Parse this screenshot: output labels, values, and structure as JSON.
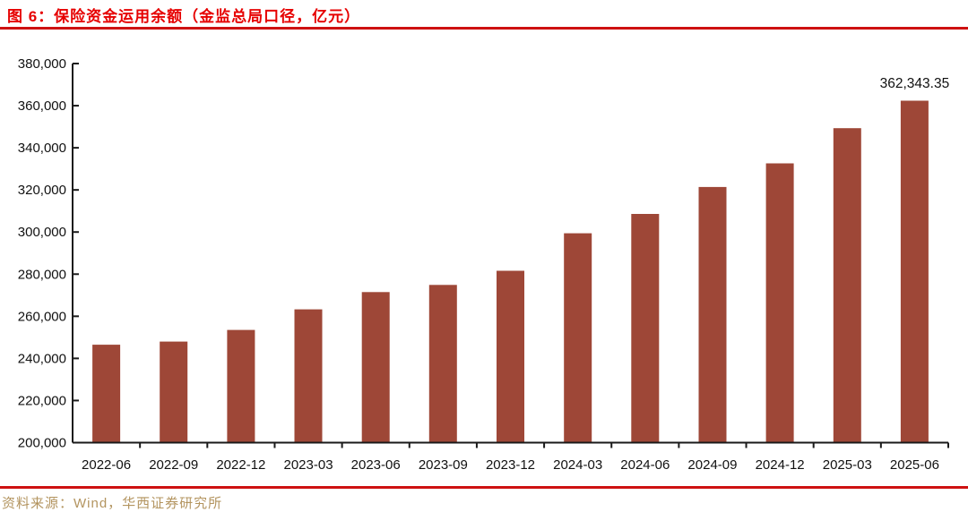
{
  "figure": {
    "title": "图 6：保险资金运用余额（金监总局口径，亿元）",
    "source_note": "资料来源：Wind，华西证券研究所"
  },
  "colors": {
    "title_red": "#E60000",
    "rule_red": "#CE1111",
    "bar_fill": "#9E4737",
    "axis": "#1A1A1A",
    "tick_label": "#111111",
    "source_tan": "#B3945F"
  },
  "chart_data": {
    "type": "bar",
    "title": "保险资金运用余额（金监总局口径，亿元）",
    "categories": [
      "2022-06",
      "2022-09",
      "2022-12",
      "2023-03",
      "2023-06",
      "2023-09",
      "2023-12",
      "2024-03",
      "2024-06",
      "2024-09",
      "2024-12",
      "2025-03",
      "2025-06"
    ],
    "values": [
      246500,
      248000,
      253500,
      263300,
      271500,
      274900,
      281600,
      299400,
      308600,
      321400,
      332600,
      349300,
      362343.35
    ],
    "ylabel": "",
    "xlabel": "",
    "ylim": [
      200000,
      380000
    ],
    "y_tick_step": 20000,
    "y_tick_labels": [
      "200,000",
      "220,000",
      "240,000",
      "260,000",
      "280,000",
      "300,000",
      "320,000",
      "340,000",
      "360,000",
      "380,000"
    ],
    "grid": false,
    "legend": "none",
    "data_label": {
      "category": "2025-06",
      "text": "362,343.35"
    }
  }
}
